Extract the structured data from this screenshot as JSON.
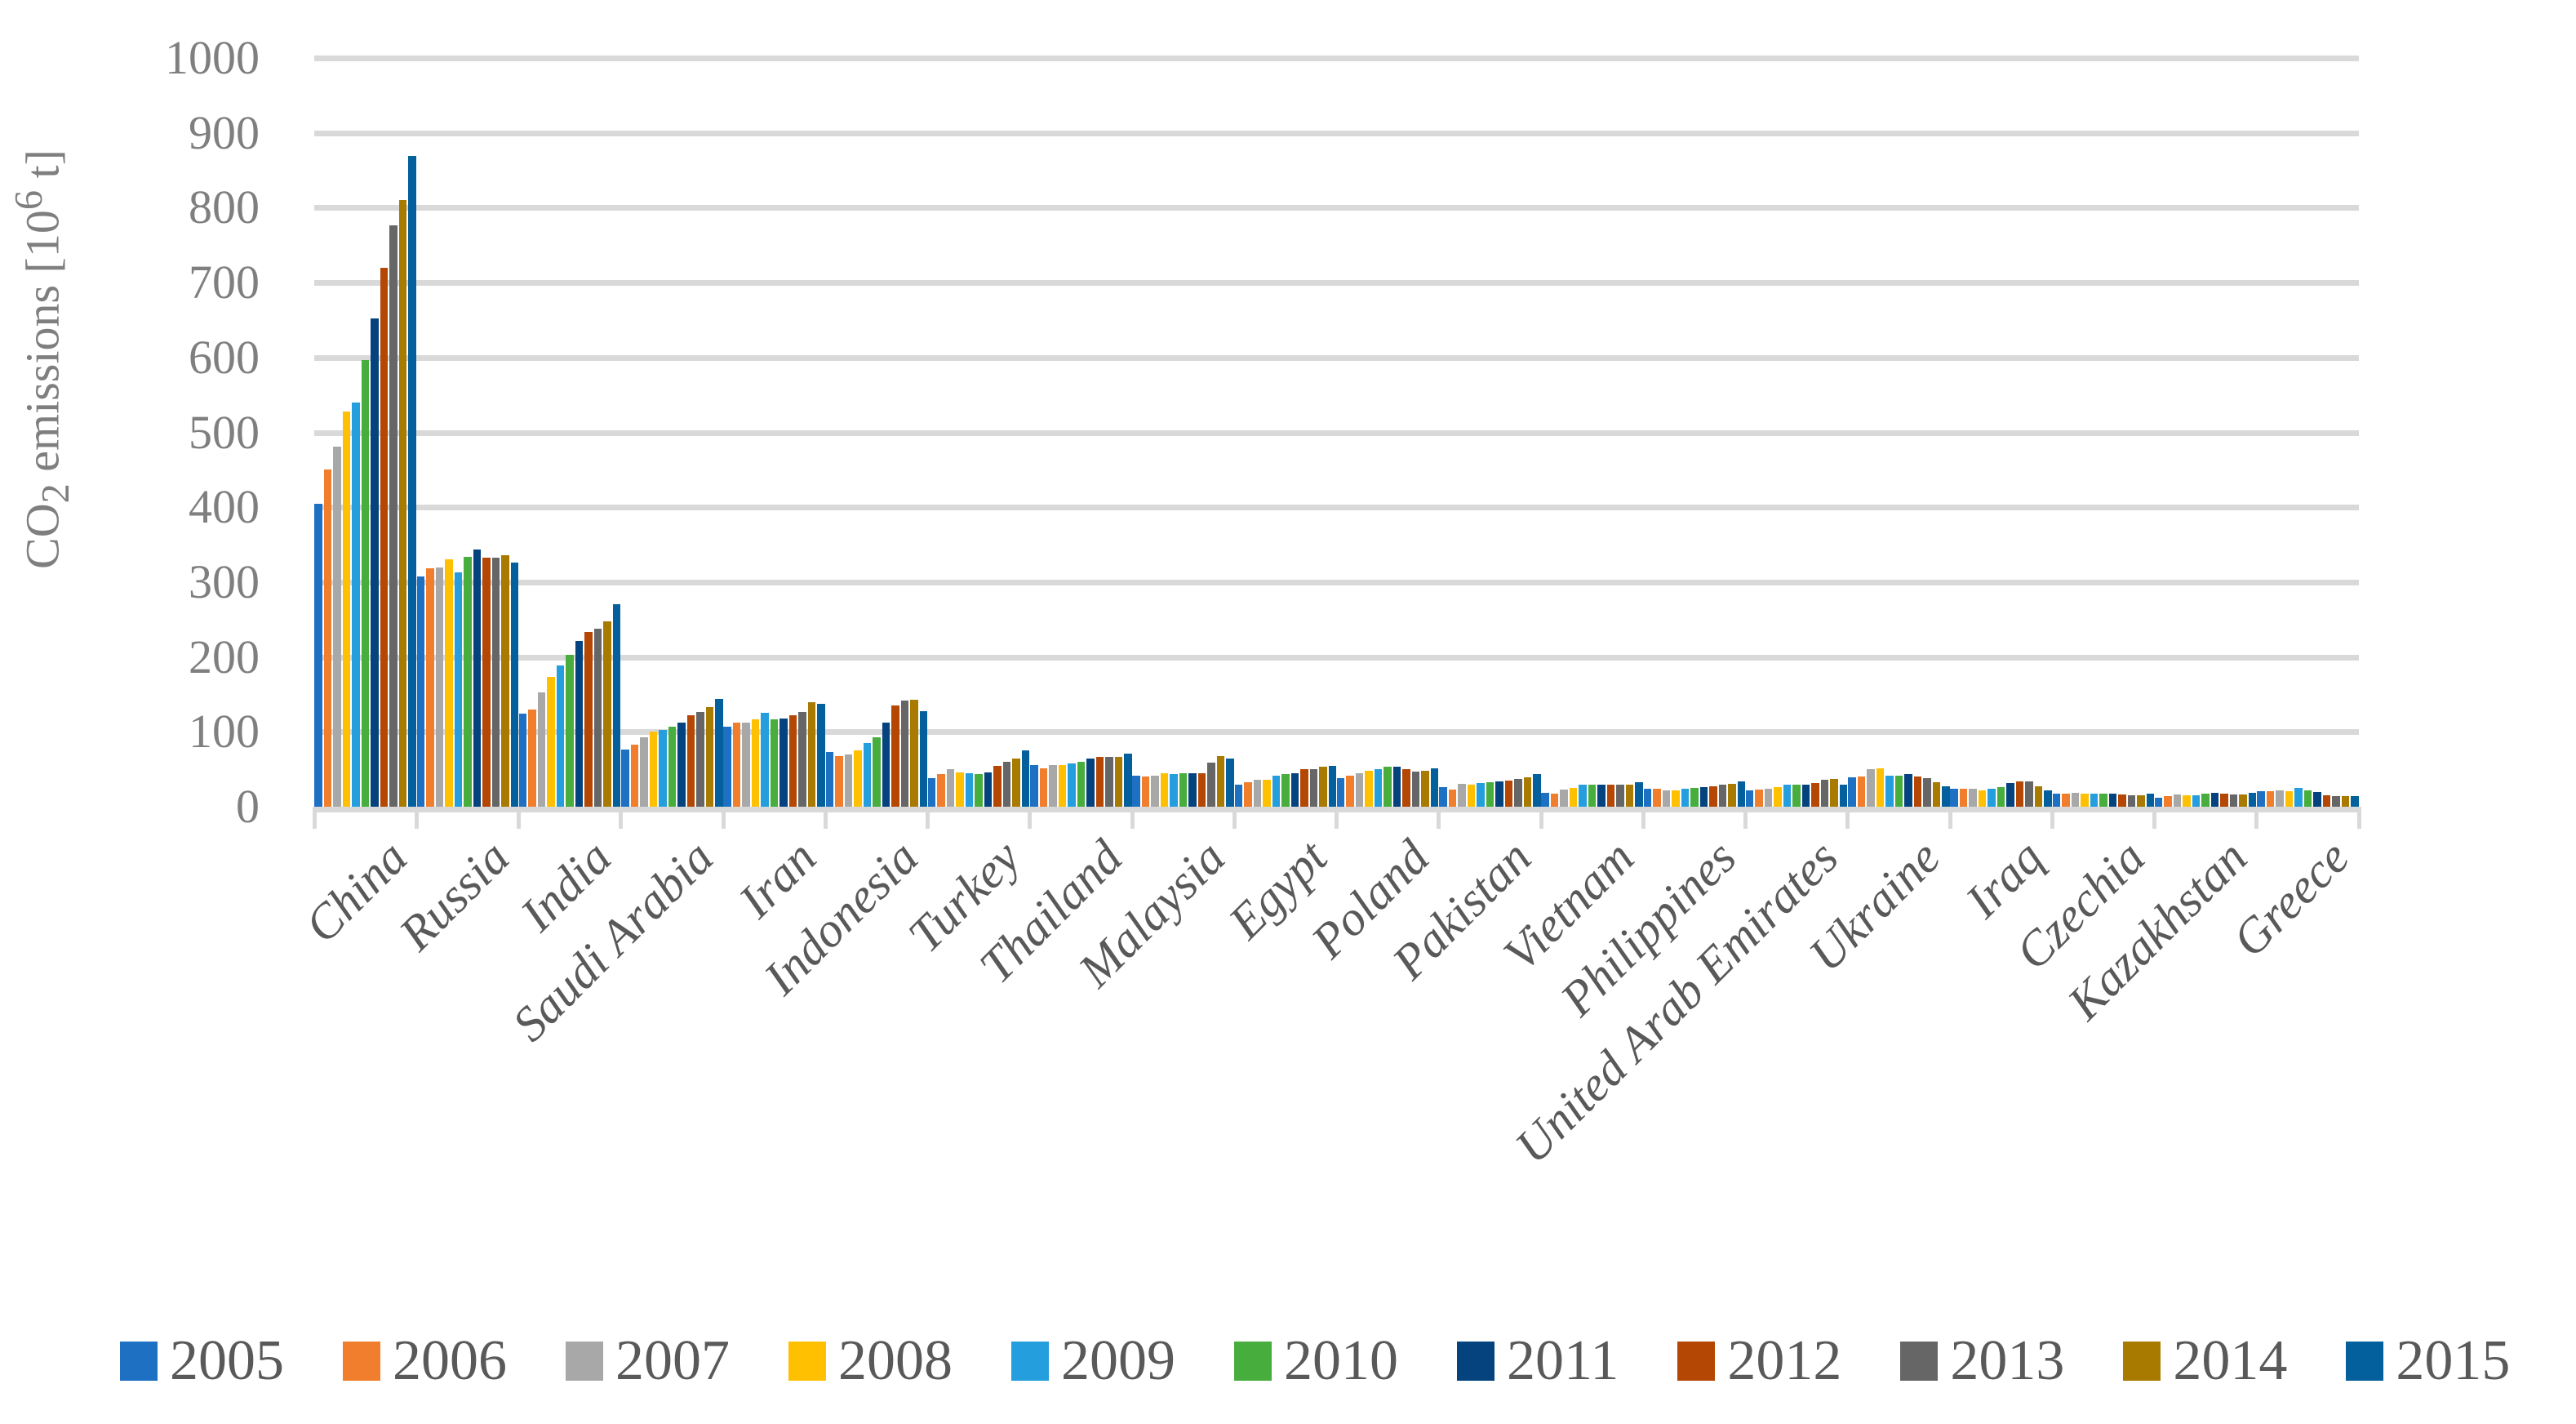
{
  "chart_data": {
    "type": "bar",
    "title": "",
    "ylabel": {
      "text": "CO2 emissions [10^6 t]",
      "p1": "CO",
      "sub": "2",
      "p2": " emissions [10",
      "sup": "6",
      "p3": " t]"
    },
    "xlabel": "",
    "y_axis": {
      "min": 0,
      "max": 1000,
      "step": 100,
      "tick_labels": [
        "0",
        "100",
        "200",
        "300",
        "400",
        "500",
        "600",
        "700",
        "800",
        "900",
        "1000"
      ]
    },
    "grid": true,
    "legend_position": "bottom",
    "categories": [
      "China",
      "Russia",
      "India",
      "Saudi Arabia",
      "Iran",
      "Indonesia",
      "Turkey",
      "Thailand",
      "Malaysia",
      "Egypt",
      "Poland",
      "Pakistan",
      "Vietnam",
      "Philippines",
      "United Arab Emirates",
      "Ukraine",
      "Iraq",
      "Czechia",
      "Kazakhstan",
      "Greece"
    ],
    "series": [
      {
        "name": "2005",
        "color": "#1d70c2",
        "values": [
          405,
          307,
          124,
          76,
          107,
          73,
          38,
          56,
          42,
          30,
          38,
          26,
          19,
          24,
          22,
          39,
          24,
          18,
          12,
          21
        ]
      },
      {
        "name": "2006",
        "color": "#f07e2c",
        "values": [
          450,
          318,
          130,
          83,
          112,
          68,
          44,
          51,
          40,
          33,
          42,
          23,
          18,
          24,
          23,
          40,
          24,
          18,
          14,
          21
        ]
      },
      {
        "name": "2007",
        "color": "#a8a8a8",
        "values": [
          481,
          320,
          153,
          93,
          112,
          70,
          50,
          56,
          42,
          36,
          45,
          31,
          23,
          22,
          24,
          50,
          24,
          19,
          16,
          22
        ]
      },
      {
        "name": "2008",
        "color": "#ffc002",
        "values": [
          528,
          330,
          173,
          100,
          117,
          75,
          46,
          56,
          45,
          36,
          48,
          29,
          25,
          22,
          26,
          51,
          22,
          18,
          15,
          21
        ]
      },
      {
        "name": "2009",
        "color": "#249edc",
        "values": [
          540,
          313,
          189,
          103,
          125,
          85,
          45,
          58,
          44,
          42,
          50,
          32,
          29,
          24,
          30,
          42,
          24,
          17,
          15,
          25
        ]
      },
      {
        "name": "2010",
        "color": "#47ad3d",
        "values": [
          597,
          334,
          203,
          107,
          117,
          93,
          44,
          60,
          45,
          44,
          53,
          33,
          30,
          25,
          30,
          42,
          26,
          17,
          17,
          22
        ]
      },
      {
        "name": "2011",
        "color": "#04437e",
        "values": [
          652,
          344,
          221,
          112,
          118,
          112,
          46,
          64,
          45,
          45,
          53,
          34,
          30,
          26,
          30,
          44,
          32,
          17,
          19,
          20
        ]
      },
      {
        "name": "2012",
        "color": "#b54704",
        "values": [
          720,
          333,
          233,
          122,
          122,
          135,
          54,
          66,
          45,
          50,
          50,
          35,
          30,
          27,
          32,
          40,
          34,
          16,
          18,
          15
        ]
      },
      {
        "name": "2013",
        "color": "#666666",
        "values": [
          777,
          333,
          238,
          126,
          127,
          142,
          60,
          67,
          59,
          50,
          47,
          37,
          29,
          29,
          36,
          38,
          34,
          15,
          16,
          14
        ]
      },
      {
        "name": "2014",
        "color": "#a87a00",
        "values": [
          810,
          336,
          248,
          133,
          140,
          143,
          64,
          66,
          68,
          53,
          48,
          39,
          30,
          31,
          37,
          33,
          27,
          15,
          16,
          14
        ]
      },
      {
        "name": "2015",
        "color": "#03609c",
        "values": [
          869,
          326,
          271,
          144,
          137,
          128,
          75,
          71,
          64,
          55,
          51,
          44,
          33,
          34,
          30,
          27,
          22,
          17,
          19,
          14
        ]
      }
    ],
    "style_colors": {
      "gridline": "#d9d9d9",
      "axis_line": "#d9d9d9",
      "y_tick_text": "#7f7f7f",
      "y_title_text": "#7f7f7f",
      "x_label_text": "#595959",
      "legend_text": "#595959"
    }
  }
}
